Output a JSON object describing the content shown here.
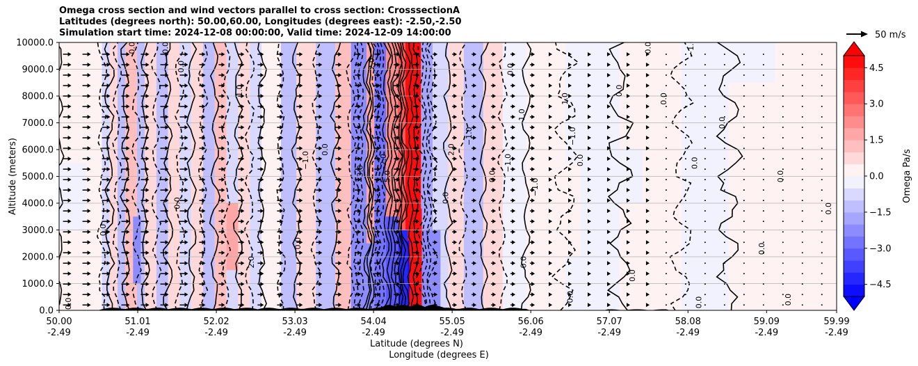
{
  "chart_data": {
    "type": "heatmap",
    "title_lines": [
      "Omega cross section and wind vectors parallel to cross section: CrosssectionA",
      "Latitudes (degrees north): 50.00,60.00, Longitudes (degrees east): -2.50,-2.50",
      "Simulation start time: 2024-12-08 00:00:00, Valid time: 2024-12-09 14:00:00"
    ],
    "ylabel": "Altitude (meters)",
    "xlabel_lines": [
      "Latitude (degrees N)",
      "Longitude (degrees E)"
    ],
    "xlim": [
      50.0,
      59.99
    ],
    "ylim": [
      0,
      10000
    ],
    "grid": "horizontal",
    "y_ticks": [
      {
        "value": 0,
        "label": "0.0"
      },
      {
        "value": 1000,
        "label": "1000.0"
      },
      {
        "value": 2000,
        "label": "2000.0"
      },
      {
        "value": 3000,
        "label": "3000.0"
      },
      {
        "value": 4000,
        "label": "4000.0"
      },
      {
        "value": 5000,
        "label": "5000.0"
      },
      {
        "value": 6000,
        "label": "6000.0"
      },
      {
        "value": 7000,
        "label": "7000.0"
      },
      {
        "value": 8000,
        "label": "8000.0"
      },
      {
        "value": 9000,
        "label": "9000.0"
      },
      {
        "value": 10000,
        "label": "10000.0"
      }
    ],
    "x_ticks": [
      {
        "lat": 50.0,
        "lat_label": "50.00",
        "lon_label": "-2.49"
      },
      {
        "lat": 51.01,
        "lat_label": "51.01",
        "lon_label": "-2.49"
      },
      {
        "lat": 52.02,
        "lat_label": "52.02",
        "lon_label": "-2.49"
      },
      {
        "lat": 53.03,
        "lat_label": "53.03",
        "lon_label": "-2.49"
      },
      {
        "lat": 54.04,
        "lat_label": "54.04",
        "lon_label": "-2.49"
      },
      {
        "lat": 55.05,
        "lat_label": "55.05",
        "lon_label": "-2.49"
      },
      {
        "lat": 56.06,
        "lat_label": "56.06",
        "lon_label": "-2.49"
      },
      {
        "lat": 57.07,
        "lat_label": "57.07",
        "lon_label": "-2.49"
      },
      {
        "lat": 58.08,
        "lat_label": "58.08",
        "lon_label": "-2.49"
      },
      {
        "lat": 59.09,
        "lat_label": "59.09",
        "lon_label": "-2.49"
      },
      {
        "lat": 59.99,
        "lat_label": "59.99",
        "lon_label": "-2.49"
      }
    ],
    "colorbar": {
      "label": "Omega Pa/s",
      "vmin": -5.0,
      "vmax": 5.0,
      "levels": [
        -5.0,
        -4.5,
        -4.0,
        -3.5,
        -3.0,
        -2.5,
        -2.0,
        -1.5,
        -1.0,
        -0.5,
        0.0,
        0.5,
        1.0,
        1.5,
        2.0,
        2.5,
        3.0,
        3.5,
        4.0,
        4.5,
        5.0
      ],
      "tick_values": [
        -4.5,
        -3.0,
        -1.5,
        0.0,
        1.5,
        3.0,
        4.5
      ],
      "tick_labels": [
        "−4.5",
        "−3.0",
        "−1.5",
        "0.0",
        "1.5",
        "3.0",
        "4.5"
      ],
      "extend": "both"
    },
    "reference_vector": {
      "label": "50 m/s",
      "speed": 50
    },
    "omega_bands": [
      {
        "lat0": 50.0,
        "lat1": 50.55,
        "value": 0.2
      },
      {
        "lat0": 50.55,
        "lat1": 50.65,
        "value": -0.6
      },
      {
        "lat0": 50.65,
        "lat1": 50.75,
        "value": 1.0
      },
      {
        "lat0": 50.75,
        "lat1": 50.85,
        "value": -1.2
      },
      {
        "lat0": 50.85,
        "lat1": 51.0,
        "value": 1.2
      },
      {
        "lat0": 51.0,
        "lat1": 51.1,
        "value": -1.0
      },
      {
        "lat0": 51.1,
        "lat1": 51.25,
        "value": 0.8
      },
      {
        "lat0": 51.25,
        "lat1": 51.4,
        "value": -1.4
      },
      {
        "lat0": 51.4,
        "lat1": 51.55,
        "value": 1.0
      },
      {
        "lat0": 51.55,
        "lat1": 51.7,
        "value": -0.8
      },
      {
        "lat0": 51.7,
        "lat1": 51.85,
        "value": 0.6
      },
      {
        "lat0": 51.85,
        "lat1": 52.0,
        "value": -1.2
      },
      {
        "lat0": 52.0,
        "lat1": 52.15,
        "value": 1.2
      },
      {
        "lat0": 52.15,
        "lat1": 52.3,
        "value": -0.8
      },
      {
        "lat0": 52.3,
        "lat1": 52.45,
        "value": 0.8
      },
      {
        "lat0": 52.45,
        "lat1": 52.6,
        "value": -0.6
      },
      {
        "lat0": 52.6,
        "lat1": 52.85,
        "value": 0.4
      },
      {
        "lat0": 52.85,
        "lat1": 53.05,
        "value": -1.4
      },
      {
        "lat0": 53.05,
        "lat1": 53.3,
        "value": 0.6
      },
      {
        "lat0": 53.3,
        "lat1": 53.55,
        "value": -1.2
      },
      {
        "lat0": 53.55,
        "lat1": 53.75,
        "value": 1.4
      },
      {
        "lat0": 53.75,
        "lat1": 53.95,
        "value": -2.2
      },
      {
        "lat0": 53.95,
        "lat1": 54.05,
        "value": 1.6
      },
      {
        "lat0": 54.05,
        "lat1": 54.2,
        "value": -2.6
      },
      {
        "lat0": 54.2,
        "lat1": 54.35,
        "value": 2.2
      },
      {
        "lat0": 54.35,
        "lat1": 54.45,
        "value": 3.2
      },
      {
        "lat0": 54.45,
        "lat1": 54.65,
        "value": 5.0
      },
      {
        "lat0": 54.65,
        "lat1": 54.8,
        "value": -1.8
      },
      {
        "lat0": 54.8,
        "lat1": 55.0,
        "value": -0.8
      },
      {
        "lat0": 55.0,
        "lat1": 55.2,
        "value": 1.0
      },
      {
        "lat0": 55.2,
        "lat1": 55.45,
        "value": -1.0
      },
      {
        "lat0": 55.45,
        "lat1": 55.7,
        "value": 0.6
      },
      {
        "lat0": 55.7,
        "lat1": 56.0,
        "value": -0.4
      },
      {
        "lat0": 56.0,
        "lat1": 56.5,
        "value": 0.2
      },
      {
        "lat0": 56.5,
        "lat1": 57.2,
        "value": -0.2
      },
      {
        "lat0": 57.2,
        "lat1": 58.0,
        "value": 0.2
      },
      {
        "lat0": 58.0,
        "lat1": 58.6,
        "value": -0.2
      },
      {
        "lat0": 58.6,
        "lat1": 59.99,
        "value": 0.1
      }
    ],
    "omega_cells": [
      {
        "lat0": 54.48,
        "lat1": 54.58,
        "alt0": 0,
        "alt1": 2600,
        "value": -5.0
      },
      {
        "lat0": 54.36,
        "lat1": 54.48,
        "alt0": 0,
        "alt1": 3000,
        "value": -4.0
      },
      {
        "lat0": 54.2,
        "lat1": 54.36,
        "alt0": 0,
        "alt1": 3500,
        "value": -3.0
      },
      {
        "lat0": 54.58,
        "lat1": 54.66,
        "alt0": 0,
        "alt1": 3800,
        "value": 4.8
      },
      {
        "lat0": 54.66,
        "lat1": 54.9,
        "alt0": 0,
        "alt1": 3000,
        "value": -2.4
      },
      {
        "lat0": 53.8,
        "lat1": 54.05,
        "alt0": 0,
        "alt1": 2500,
        "value": -2.4
      },
      {
        "lat0": 54.5,
        "lat1": 54.6,
        "alt0": 0,
        "alt1": 10000,
        "value": 5.0
      },
      {
        "lat0": 50.95,
        "lat1": 51.05,
        "alt0": 1000,
        "alt1": 3500,
        "value": -2.0
      },
      {
        "lat0": 52.15,
        "lat1": 52.3,
        "alt0": 1500,
        "alt1": 4000,
        "value": 1.6
      },
      {
        "lat0": 56.8,
        "lat1": 57.5,
        "alt0": 4000,
        "alt1": 6000,
        "value": -0.4
      },
      {
        "lat0": 58.3,
        "lat1": 59.2,
        "alt0": 8500,
        "alt1": 10000,
        "value": -0.3
      },
      {
        "lat0": 59.3,
        "lat1": 59.8,
        "alt0": 1000,
        "alt1": 3500,
        "value": 0.4
      },
      {
        "lat0": 56.4,
        "lat1": 56.7,
        "alt0": 2000,
        "alt1": 5500,
        "value": 0.3
      },
      {
        "lat0": 50.0,
        "lat1": 50.35,
        "alt0": 3000,
        "alt1": 5500,
        "value": -0.3
      }
    ],
    "contour_labels": [
      {
        "lat": 50.97,
        "alt": 9800,
        "text": "0.0"
      },
      {
        "lat": 51.4,
        "alt": 9800,
        "text": "0.0"
      },
      {
        "lat": 51.6,
        "alt": 9100,
        "text": "0.0"
      },
      {
        "lat": 52.35,
        "alt": 8200,
        "text": "1.0"
      },
      {
        "lat": 53.45,
        "alt": 6000,
        "text": "0.0"
      },
      {
        "lat": 53.2,
        "alt": 5600,
        "text": "−1.0"
      },
      {
        "lat": 54.05,
        "alt": 9200,
        "text": "2.0"
      },
      {
        "lat": 54.2,
        "alt": 5500,
        "text": "−2.0"
      },
      {
        "lat": 54.25,
        "alt": 5000,
        "text": "5.0"
      },
      {
        "lat": 53.9,
        "alt": 5200,
        "text": "3.0"
      },
      {
        "lat": 55.07,
        "alt": 6000,
        "text": "2.0"
      },
      {
        "lat": 55.0,
        "alt": 4200,
        "text": "0.0"
      },
      {
        "lat": 55.3,
        "alt": 6500,
        "text": "−1.0"
      },
      {
        "lat": 55.6,
        "alt": 5000,
        "text": "0.0"
      },
      {
        "lat": 55.8,
        "alt": 5500,
        "text": "−1.0"
      },
      {
        "lat": 55.83,
        "alt": 9000,
        "text": "0.0"
      },
      {
        "lat": 55.98,
        "alt": 7300,
        "text": "1.0"
      },
      {
        "lat": 56.15,
        "alt": 4600,
        "text": "−1.0"
      },
      {
        "lat": 56.53,
        "alt": 7900,
        "text": "1.0"
      },
      {
        "lat": 56.63,
        "alt": 6500,
        "text": "−1.0"
      },
      {
        "lat": 56.73,
        "alt": 5600,
        "text": "0.0"
      },
      {
        "lat": 57.23,
        "alt": 8200,
        "text": "0.0"
      },
      {
        "lat": 57.6,
        "alt": 9800,
        "text": "0.0"
      },
      {
        "lat": 57.8,
        "alt": 7900,
        "text": "0.0"
      },
      {
        "lat": 58.15,
        "alt": 9800,
        "text": "−1.0"
      },
      {
        "lat": 58.2,
        "alt": 5500,
        "text": "0.0"
      },
      {
        "lat": 58.55,
        "alt": 7000,
        "text": "0.0"
      },
      {
        "lat": 59.3,
        "alt": 5000,
        "text": "0.0"
      },
      {
        "lat": 59.06,
        "alt": 2300,
        "text": "0.0"
      },
      {
        "lat": 59.92,
        "alt": 3800,
        "text": "0.0"
      },
      {
        "lat": 56.0,
        "alt": 1800,
        "text": "0.0"
      },
      {
        "lat": 56.6,
        "alt": 500,
        "text": "0.0"
      },
      {
        "lat": 57.4,
        "alt": 1300,
        "text": "0.0"
      },
      {
        "lat": 58.25,
        "alt": 300,
        "text": "0.0"
      },
      {
        "lat": 59.4,
        "alt": 400,
        "text": "0.0"
      },
      {
        "lat": 50.6,
        "alt": 3000,
        "text": "0.0"
      },
      {
        "lat": 50.15,
        "alt": 250,
        "text": "0.0"
      },
      {
        "lat": 51.55,
        "alt": 4000,
        "text": "0.0"
      },
      {
        "lat": 52.5,
        "alt": 1800,
        "text": "2.0"
      },
      {
        "lat": 53.1,
        "alt": 2500,
        "text": "0.0"
      }
    ]
  }
}
